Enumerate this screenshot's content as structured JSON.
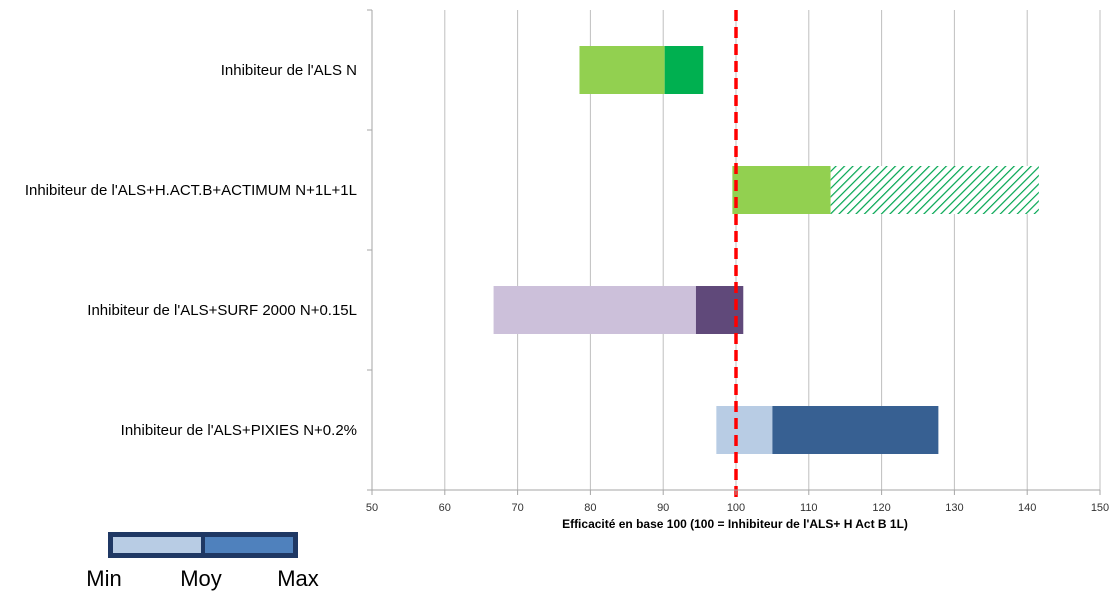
{
  "chart_data": {
    "type": "bar",
    "orientation": "horizontal",
    "stacked_range": true,
    "categories": [
      "Inhibiteur de l'ALS N",
      "Inhibiteur de l'ALS+H.ACT.B+ACTIMUM N+1L+1L",
      "Inhibiteur de l'ALS+SURF 2000 N+0.15L",
      "Inhibiteur de l'ALS+PIXIES N+0.2%"
    ],
    "series": [
      {
        "name": "Min",
        "values": [
          78.5,
          99.5,
          66.7,
          97.3
        ]
      },
      {
        "name": "Moy",
        "values": [
          90.2,
          113,
          94.5,
          105
        ]
      },
      {
        "name": "Max",
        "values": [
          95.5,
          141.6,
          101,
          127.8
        ]
      }
    ],
    "bar_colors": [
      {
        "low": "#92d050",
        "high": "#00b050",
        "high_pattern": "solid"
      },
      {
        "low": "#92d050",
        "high": "#00b050",
        "high_pattern": "hatched"
      },
      {
        "low": "#ccc0da",
        "high": "#60497a",
        "high_pattern": "solid"
      },
      {
        "low": "#b8cce4",
        "high": "#376092",
        "high_pattern": "solid"
      }
    ],
    "reference_line": {
      "value": 100,
      "color": "#ff0000",
      "style": "dashed"
    },
    "xlabel": "Efficacité en base 100 (100 = Inhibiteur de l'ALS+ H Act B 1L)",
    "ylabel": "",
    "xlim": [
      50,
      150
    ],
    "xticks": [
      50,
      60,
      70,
      80,
      90,
      100,
      110,
      120,
      130,
      140,
      150
    ],
    "grid": "vertical",
    "legend": {
      "labels": [
        "Min",
        "Moy",
        "Max"
      ],
      "colors": {
        "low": "#b8cce4",
        "high": "#4f81bd",
        "border": "#1f3864"
      }
    }
  }
}
